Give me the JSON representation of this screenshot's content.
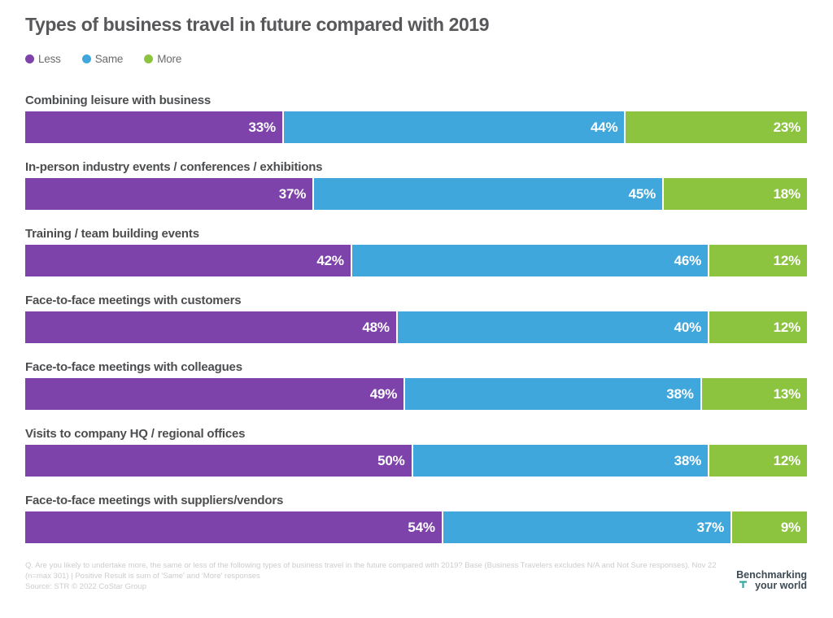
{
  "chart_data": {
    "type": "bar",
    "stacked": true,
    "orientation": "horizontal",
    "title": "Types of business travel in future compared with 2019",
    "categories": [
      "Combining leisure with business",
      "In-person industry events / conferences / exhibitions",
      "Training / team building events",
      "Face-to-face meetings with customers",
      "Face-to-face meetings with colleagues",
      "Visits to company HQ / regional offices",
      "Face-to-face meetings with suppliers/vendors"
    ],
    "series": [
      {
        "name": "Less",
        "color": "#7d43ab",
        "values": [
          33,
          37,
          42,
          48,
          49,
          50,
          54
        ]
      },
      {
        "name": "Same",
        "color": "#3fa7dc",
        "values": [
          44,
          45,
          46,
          40,
          38,
          38,
          37
        ]
      },
      {
        "name": "More",
        "color": "#8cc440",
        "values": [
          23,
          18,
          12,
          12,
          13,
          12,
          9
        ]
      }
    ],
    "value_suffix": "%",
    "xlim": [
      0,
      100
    ],
    "legend_position": "top-left",
    "grid": false,
    "value_label_color": "#ffffff"
  },
  "footer": {
    "question": "Q. Are you likely to undertake more, the same or less of the following types of business travel in the future compared with 2019? Base (Business Travelers excludes N/A and Not Sure responses). Nov 22 (n=max 301) | Positive Result is sum of 'Same' and 'More' responses",
    "source": "Source: STR  © 2022 CoStar Group"
  },
  "brand": {
    "line1": "Benchmarking",
    "line2": "your world",
    "text_color": "#3e4a54",
    "icon_color": "#2fa99e",
    "icon": "str-t-mark"
  }
}
